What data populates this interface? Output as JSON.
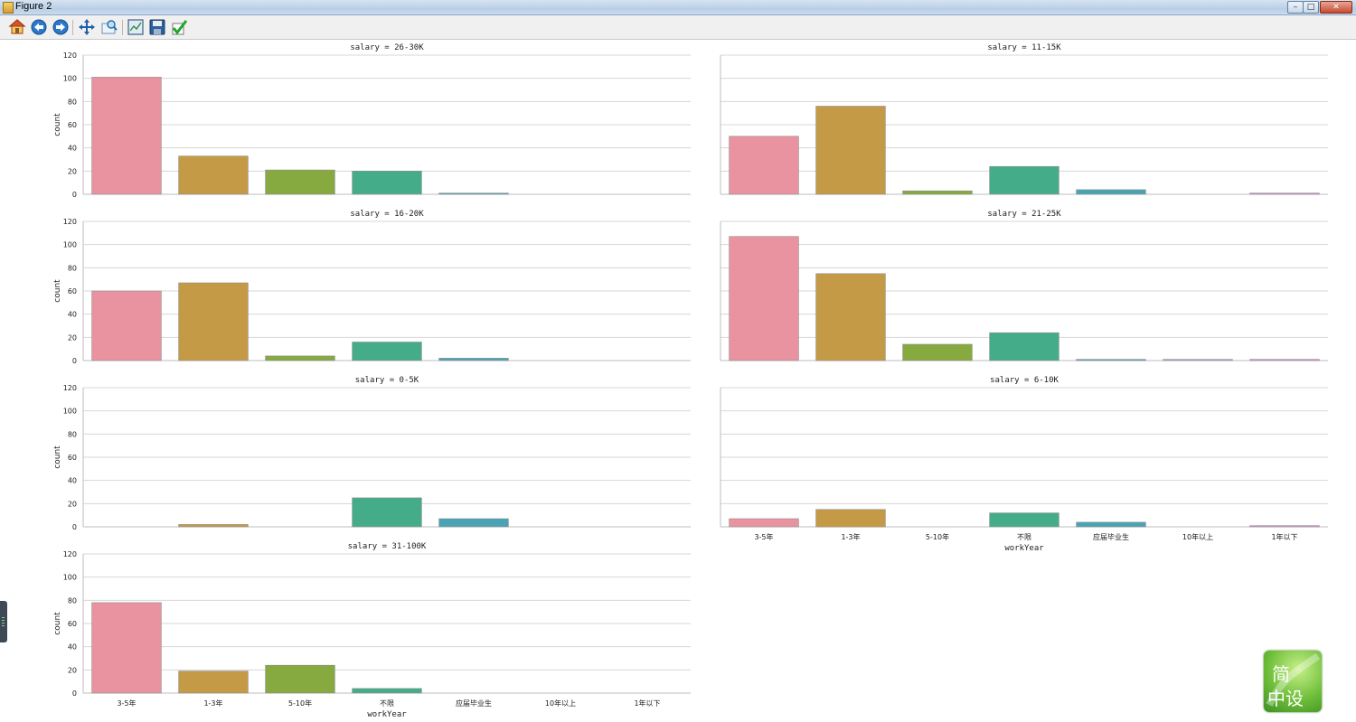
{
  "window": {
    "title": "Figure 2",
    "minimize": "–",
    "maximize": "□",
    "close": "✕"
  },
  "toolbar": {
    "buttons": [
      {
        "name": "home-icon",
        "label": "Home"
      },
      {
        "name": "back-icon",
        "label": "Back"
      },
      {
        "name": "forward-icon",
        "label": "Forward"
      },
      {
        "name": "pan-icon",
        "label": "Pan"
      },
      {
        "name": "zoom-icon",
        "label": "Zoom"
      },
      {
        "name": "subplots-icon",
        "label": "Configure subplots"
      },
      {
        "name": "save-icon",
        "label": "Save"
      },
      {
        "name": "edit-icon",
        "label": "Edit"
      }
    ]
  },
  "watermark": {
    "text_top": "简",
    "text_bottom": "中设"
  },
  "colors": {
    "bars": [
      "#e8939f",
      "#c59a46",
      "#86a940",
      "#45ac8a",
      "#4aa3b4",
      "#9aa4d8",
      "#d88ad8"
    ],
    "grid": "#d7d7d7",
    "axis": "#bdbdbd",
    "text": "#222222"
  },
  "chart_data": {
    "type": "bar",
    "categories": [
      "3-5年",
      "1-3年",
      "5-10年",
      "不限",
      "应届毕业生",
      "10年以上",
      "1年以下"
    ],
    "xlabel": "workYear",
    "ylabel": "count",
    "ylim": [
      0,
      120
    ],
    "yticks": [
      0,
      20,
      40,
      60,
      80,
      100,
      120
    ],
    "facets": [
      {
        "title": "salary = 26-30K",
        "values": [
          101,
          33,
          21,
          20,
          1,
          0,
          0
        ]
      },
      {
        "title": "salary = 11-15K",
        "values": [
          50,
          76,
          3,
          24,
          4,
          0,
          1
        ]
      },
      {
        "title": "salary = 16-20K",
        "values": [
          60,
          67,
          4,
          16,
          2,
          0,
          0
        ]
      },
      {
        "title": "salary = 21-25K",
        "values": [
          107,
          75,
          14,
          24,
          1,
          1,
          1
        ]
      },
      {
        "title": "salary = 0-5K",
        "values": [
          0,
          2,
          0,
          25,
          7,
          0,
          0
        ]
      },
      {
        "title": "salary = 6-10K",
        "values": [
          7,
          15,
          0,
          12,
          4,
          0,
          1
        ]
      },
      {
        "title": "salary = 31-100K",
        "values": [
          78,
          19,
          24,
          4,
          0,
          0,
          0
        ]
      }
    ]
  }
}
